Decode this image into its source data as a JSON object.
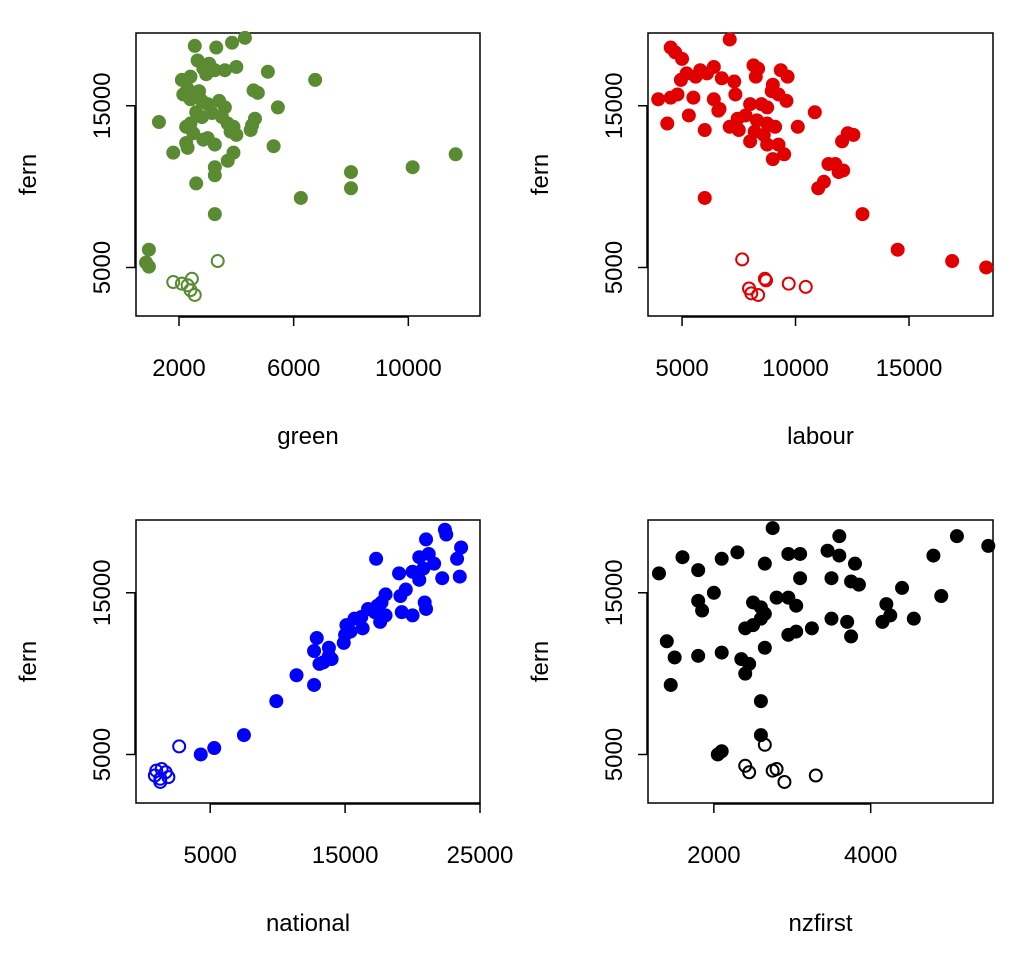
{
  "chart_data": [
    {
      "type": "scatter",
      "xlabel": "green",
      "ylabel": "fern",
      "color": "#5a8a32",
      "xlim": [
        500,
        12500
      ],
      "ylim": [
        2000,
        19500
      ],
      "xticks": [
        2000,
        6000,
        10000
      ],
      "xtick_labels": [
        "2000",
        "6000",
        "10000"
      ],
      "yticks": [
        5000,
        15000
      ],
      "ytick_labels": [
        "5000",
        "15000"
      ],
      "filled": [
        [
          2550,
          18700
        ],
        [
          3300,
          18600
        ],
        [
          3850,
          18900
        ],
        [
          4300,
          19200
        ],
        [
          2650,
          17800
        ],
        [
          3050,
          17600
        ],
        [
          3150,
          17300
        ],
        [
          2850,
          17300
        ],
        [
          3600,
          17200
        ],
        [
          4000,
          17400
        ],
        [
          2400,
          16800
        ],
        [
          2100,
          16600
        ],
        [
          5100,
          17100
        ],
        [
          6750,
          16600
        ],
        [
          3250,
          17200
        ],
        [
          2950,
          16950
        ],
        [
          2300,
          16050
        ],
        [
          2150,
          15700
        ],
        [
          2700,
          15900
        ],
        [
          2400,
          15400
        ],
        [
          2800,
          15300
        ],
        [
          3000,
          15100
        ],
        [
          3400,
          15300
        ],
        [
          3600,
          14900
        ],
        [
          4600,
          15950
        ],
        [
          4750,
          15800
        ],
        [
          5450,
          14900
        ],
        [
          3150,
          14550
        ],
        [
          3500,
          14300
        ],
        [
          3700,
          13900
        ],
        [
          2600,
          14600
        ],
        [
          2800,
          14300
        ],
        [
          2400,
          13900
        ],
        [
          2250,
          13700
        ],
        [
          2500,
          13300
        ],
        [
          2850,
          12900
        ],
        [
          2250,
          12700
        ],
        [
          3000,
          13000
        ],
        [
          3250,
          12600
        ],
        [
          3900,
          13700
        ],
        [
          4550,
          13800
        ],
        [
          4650,
          14200
        ],
        [
          4500,
          13500
        ],
        [
          3800,
          13400
        ],
        [
          4000,
          13200
        ],
        [
          5300,
          12500
        ],
        [
          1300,
          14000
        ],
        [
          1800,
          12100
        ],
        [
          2300,
          12400
        ],
        [
          3700,
          11600
        ],
        [
          3900,
          12100
        ],
        [
          3250,
          11200
        ],
        [
          3250,
          10700
        ],
        [
          2600,
          10200
        ],
        [
          8000,
          10900
        ],
        [
          8000,
          9900
        ],
        [
          10150,
          11200
        ],
        [
          11650,
          12000
        ],
        [
          6250,
          9300
        ],
        [
          3250,
          8300
        ],
        [
          950,
          6100
        ],
        [
          850,
          5300
        ],
        [
          950,
          5050
        ]
      ],
      "open": [
        [
          3350,
          5400
        ],
        [
          1800,
          4100
        ],
        [
          2100,
          4000
        ],
        [
          2300,
          3900
        ],
        [
          2450,
          4300
        ],
        [
          2400,
          3600
        ],
        [
          2550,
          3300
        ]
      ]
    },
    {
      "type": "scatter",
      "xlabel": "labour",
      "ylabel": "fern",
      "color": "#e00000",
      "xlim": [
        3500,
        18700
      ],
      "ylim": [
        2000,
        19500
      ],
      "xticks": [
        5000,
        10000,
        15000
      ],
      "xtick_labels": [
        "5000",
        "10000",
        "15000"
      ],
      "yticks": [
        5000,
        15000
      ],
      "ytick_labels": [
        "5000",
        "15000"
      ],
      "filled": [
        [
          4500,
          18600
        ],
        [
          4700,
          18300
        ],
        [
          5000,
          17900
        ],
        [
          7100,
          19100
        ],
        [
          5800,
          17200
        ],
        [
          6400,
          17400
        ],
        [
          8150,
          17500
        ],
        [
          8350,
          17300
        ],
        [
          9350,
          17200
        ],
        [
          5200,
          17000
        ],
        [
          5600,
          16800
        ],
        [
          4950,
          16600
        ],
        [
          6100,
          17000
        ],
        [
          6750,
          16700
        ],
        [
          7300,
          16500
        ],
        [
          8250,
          16800
        ],
        [
          9650,
          16800
        ],
        [
          9000,
          16300
        ],
        [
          3950,
          15400
        ],
        [
          4500,
          15500
        ],
        [
          4800,
          15700
        ],
        [
          5500,
          15500
        ],
        [
          6400,
          15400
        ],
        [
          7350,
          15700
        ],
        [
          8950,
          15900
        ],
        [
          9250,
          15700
        ],
        [
          6650,
          14800
        ],
        [
          8000,
          15100
        ],
        [
          8500,
          15100
        ],
        [
          8750,
          14900
        ],
        [
          9600,
          15300
        ],
        [
          10850,
          14600
        ],
        [
          5300,
          14400
        ],
        [
          6600,
          14700
        ],
        [
          7450,
          14200
        ],
        [
          7800,
          14400
        ],
        [
          8300,
          14100
        ],
        [
          8750,
          13900
        ],
        [
          9100,
          13700
        ],
        [
          10100,
          13700
        ],
        [
          4350,
          13900
        ],
        [
          6000,
          13500
        ],
        [
          7100,
          13700
        ],
        [
          7500,
          13500
        ],
        [
          8200,
          13400
        ],
        [
          8600,
          13200
        ],
        [
          8000,
          12800
        ],
        [
          8750,
          12600
        ],
        [
          9250,
          12600
        ],
        [
          12300,
          13300
        ],
        [
          12550,
          13200
        ],
        [
          12050,
          12800
        ],
        [
          9500,
          12000
        ],
        [
          9000,
          11700
        ],
        [
          11450,
          11400
        ],
        [
          11750,
          11400
        ],
        [
          11900,
          10900
        ],
        [
          12100,
          11000
        ],
        [
          11250,
          10300
        ],
        [
          11000,
          9900
        ],
        [
          6000,
          9300
        ],
        [
          12950,
          8300
        ],
        [
          14500,
          6100
        ],
        [
          16900,
          5400
        ],
        [
          18400,
          5000
        ]
      ],
      "open": [
        [
          7650,
          5500
        ],
        [
          7950,
          3700
        ],
        [
          8650,
          4300
        ],
        [
          8700,
          4200
        ],
        [
          8350,
          3300
        ],
        [
          8050,
          3400
        ],
        [
          9700,
          4000
        ],
        [
          10450,
          3800
        ]
      ]
    },
    {
      "type": "scatter",
      "xlabel": "national",
      "ylabel": "fern",
      "color": "#0000ff",
      "xlim": [
        -500,
        25000
      ],
      "ylim": [
        2000,
        19500
      ],
      "xticks": [
        5000,
        15000,
        25000
      ],
      "xtick_labels": [
        "5000",
        "15000",
        "25000"
      ],
      "yticks": [
        5000,
        15000
      ],
      "ytick_labels": [
        "5000",
        "15000"
      ],
      "filled": [
        [
          22400,
          18900
        ],
        [
          22500,
          18600
        ],
        [
          23600,
          17800
        ],
        [
          21000,
          18300
        ],
        [
          21200,
          17400
        ],
        [
          20500,
          17200
        ],
        [
          23300,
          17100
        ],
        [
          17300,
          17100
        ],
        [
          21600,
          16800
        ],
        [
          20800,
          16500
        ],
        [
          20000,
          16300
        ],
        [
          23500,
          16000
        ],
        [
          19000,
          16200
        ],
        [
          22200,
          15900
        ],
        [
          20500,
          15800
        ],
        [
          19500,
          15200
        ],
        [
          18000,
          14900
        ],
        [
          19100,
          14800
        ],
        [
          17700,
          14400
        ],
        [
          20900,
          14400
        ],
        [
          17400,
          14200
        ],
        [
          16700,
          14000
        ],
        [
          21000,
          14000
        ],
        [
          19200,
          13800
        ],
        [
          17200,
          13800
        ],
        [
          20000,
          13600
        ],
        [
          18000,
          13600
        ],
        [
          16200,
          13500
        ],
        [
          17600,
          13200
        ],
        [
          15700,
          13400
        ],
        [
          15100,
          13000
        ],
        [
          16300,
          12800
        ],
        [
          15400,
          12600
        ],
        [
          15000,
          12400
        ],
        [
          12900,
          12200
        ],
        [
          14900,
          11900
        ],
        [
          13800,
          11600
        ],
        [
          12700,
          11400
        ],
        [
          13800,
          11100
        ],
        [
          14000,
          10900
        ],
        [
          13400,
          10700
        ],
        [
          13100,
          10600
        ],
        [
          11400,
          9900
        ],
        [
          12700,
          9300
        ],
        [
          9900,
          8300
        ],
        [
          7500,
          6200
        ],
        [
          5300,
          5400
        ],
        [
          4300,
          5000
        ]
      ],
      "open": [
        [
          2700,
          5500
        ],
        [
          1000,
          4000
        ],
        [
          1400,
          4100
        ],
        [
          1700,
          3900
        ],
        [
          900,
          3700
        ],
        [
          1300,
          3500
        ],
        [
          1900,
          3600
        ],
        [
          1300,
          3300
        ]
      ]
    },
    {
      "type": "scatter",
      "xlabel": "nzfirst",
      "ylabel": "fern",
      "color": "#000000",
      "xlim": [
        1160,
        5560
      ],
      "ylim": [
        2000,
        19500
      ],
      "xticks": [
        2000,
        4000
      ],
      "xtick_labels": [
        "2000",
        "4000"
      ],
      "yticks": [
        5000,
        15000
      ],
      "ytick_labels": [
        "5000",
        "15000"
      ],
      "filled": [
        [
          2750,
          19000
        ],
        [
          3600,
          18500
        ],
        [
          5100,
          18500
        ],
        [
          5500,
          17900
        ],
        [
          2300,
          17500
        ],
        [
          2950,
          17400
        ],
        [
          3100,
          17400
        ],
        [
          3450,
          17600
        ],
        [
          3600,
          17300
        ],
        [
          4800,
          17300
        ],
        [
          1600,
          17200
        ],
        [
          2100,
          17100
        ],
        [
          2650,
          16800
        ],
        [
          3800,
          16800
        ],
        [
          1300,
          16200
        ],
        [
          1800,
          16400
        ],
        [
          3100,
          15900
        ],
        [
          3500,
          15900
        ],
        [
          3750,
          15700
        ],
        [
          3850,
          15500
        ],
        [
          4400,
          15300
        ],
        [
          2000,
          15000
        ],
        [
          4900,
          14800
        ],
        [
          2800,
          14700
        ],
        [
          2950,
          14700
        ],
        [
          1800,
          14500
        ],
        [
          2500,
          14400
        ],
        [
          2600,
          14100
        ],
        [
          3050,
          14200
        ],
        [
          4200,
          14300
        ],
        [
          1850,
          13900
        ],
        [
          2650,
          13700
        ],
        [
          2600,
          13400
        ],
        [
          3500,
          13400
        ],
        [
          4250,
          13600
        ],
        [
          4150,
          13200
        ],
        [
          3700,
          13200
        ],
        [
          4550,
          13400
        ],
        [
          2500,
          13000
        ],
        [
          2400,
          12800
        ],
        [
          3250,
          12800
        ],
        [
          3050,
          12600
        ],
        [
          2950,
          12400
        ],
        [
          3750,
          12300
        ],
        [
          1400,
          12000
        ],
        [
          2650,
          11600
        ],
        [
          1500,
          11000
        ],
        [
          1800,
          11100
        ],
        [
          2100,
          11300
        ],
        [
          2350,
          10900
        ],
        [
          2450,
          10600
        ],
        [
          2400,
          10000
        ],
        [
          1450,
          9300
        ],
        [
          2600,
          8300
        ],
        [
          2600,
          6200
        ],
        [
          2050,
          5000
        ],
        [
          2100,
          5200
        ]
      ],
      "open": [
        [
          2650,
          5600
        ],
        [
          2400,
          4300
        ],
        [
          2450,
          3900
        ],
        [
          2750,
          4000
        ],
        [
          2800,
          4100
        ],
        [
          2900,
          3300
        ],
        [
          3300,
          3700
        ]
      ]
    }
  ]
}
